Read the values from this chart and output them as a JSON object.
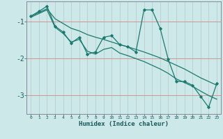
{
  "xlabel": "Humidex (Indice chaleur)",
  "bg_color": "#cce8e8",
  "line_color": "#1a7a6e",
  "grid_h_color": "#d4a0a0",
  "grid_v_color": "#c8c8d4",
  "x": [
    0,
    1,
    2,
    3,
    4,
    5,
    6,
    7,
    8,
    9,
    10,
    11,
    12,
    13,
    14,
    15,
    16,
    17,
    18,
    19,
    20,
    21,
    22,
    23
  ],
  "y_main": [
    -0.85,
    -0.72,
    -0.58,
    -1.12,
    -1.28,
    -1.58,
    -1.42,
    -1.88,
    -1.82,
    -1.42,
    -1.38,
    -1.62,
    -1.68,
    -1.82,
    -0.68,
    -0.68,
    -1.18,
    -2.02,
    -2.62,
    -2.62,
    -2.72,
    -3.02,
    -3.32,
    -2.68
  ],
  "y_upper": [
    -0.85,
    -0.75,
    -0.65,
    -0.92,
    -1.05,
    -1.18,
    -1.25,
    -1.35,
    -1.42,
    -1.48,
    -1.55,
    -1.62,
    -1.68,
    -1.75,
    -1.82,
    -1.9,
    -1.98,
    -2.08,
    -2.18,
    -2.28,
    -2.4,
    -2.52,
    -2.62,
    -2.72
  ],
  "y_lower": [
    -0.88,
    -0.78,
    -0.68,
    -1.15,
    -1.32,
    -1.55,
    -1.48,
    -1.8,
    -1.88,
    -1.75,
    -1.7,
    -1.85,
    -1.92,
    -2.0,
    -2.08,
    -2.18,
    -2.28,
    -2.4,
    -2.55,
    -2.65,
    -2.75,
    -2.88,
    -3.0,
    -3.1
  ],
  "ylim": [
    -3.5,
    -0.45
  ],
  "yticks": [
    -3,
    -2,
    -1
  ],
  "xlim": [
    -0.5,
    23.5
  ]
}
